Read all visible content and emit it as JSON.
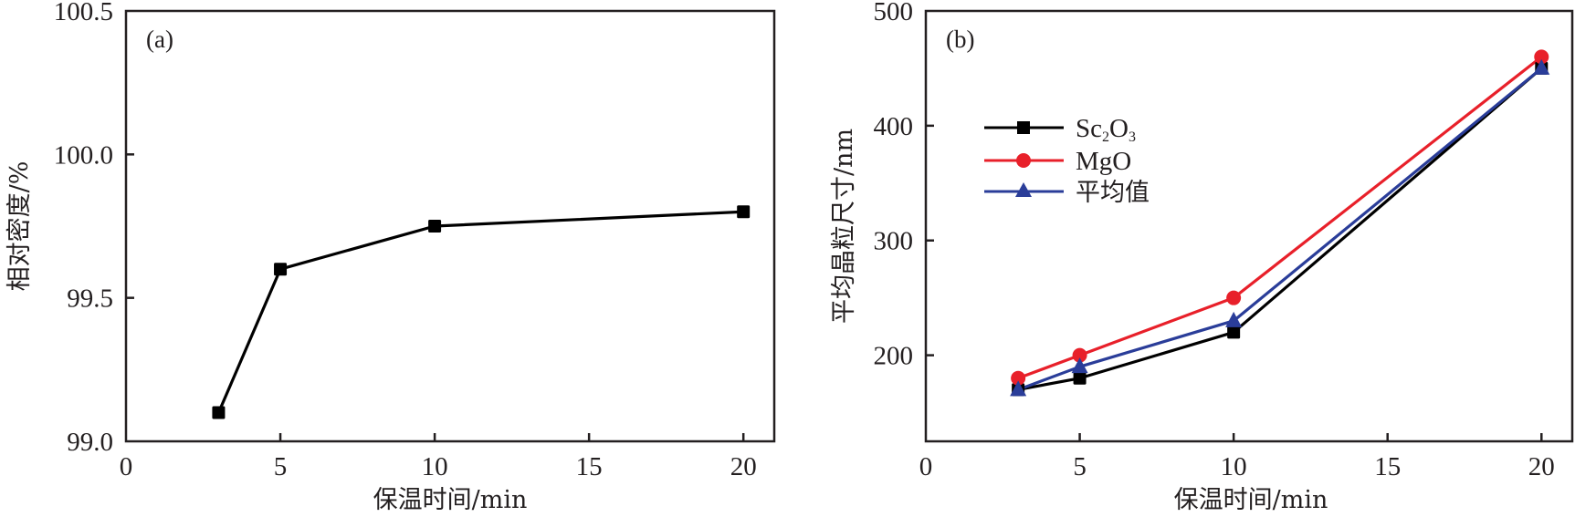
{
  "chart_data": [
    {
      "type": "line",
      "panel_label": "(a)",
      "title": "",
      "xlabel": "保温时间/min",
      "ylabel": "相对密度/%",
      "xlim": [
        0,
        21
      ],
      "ylim": [
        99.0,
        100.5
      ],
      "xticks": [
        0,
        5,
        10,
        15,
        20
      ],
      "xtick_labels": [
        "0",
        "5",
        "10",
        "15",
        "20"
      ],
      "yticks": [
        99.0,
        99.5,
        100.0,
        100.5
      ],
      "ytick_labels": [
        "99.0",
        "99.5",
        "100.0",
        "100.5"
      ],
      "grid": false,
      "series": [
        {
          "name": "相对密度",
          "color": "#000000",
          "marker": "square",
          "x": [
            3,
            5,
            10,
            20
          ],
          "values": [
            99.1,
            99.6,
            99.75,
            99.8
          ]
        }
      ]
    },
    {
      "type": "line",
      "panel_label": "(b)",
      "title": "",
      "xlabel": "保温时间/min",
      "ylabel": "平均晶粒尺寸/nm",
      "xlim": [
        0,
        21
      ],
      "ylim": [
        125,
        500
      ],
      "xticks": [
        0,
        5,
        10,
        15,
        20
      ],
      "xtick_labels": [
        "0",
        "5",
        "10",
        "15",
        "20"
      ],
      "yticks": [
        200,
        300,
        400,
        500
      ],
      "ytick_labels": [
        "200",
        "300",
        "400",
        "500"
      ],
      "grid": false,
      "legend_position": "upper-left",
      "series": [
        {
          "name": "Sc2O3",
          "label_main": "Sc",
          "label_sub1": "2",
          "label_mid": "O",
          "label_sub2": "3",
          "color": "#000000",
          "marker": "square",
          "x": [
            3,
            5,
            10,
            20
          ],
          "values": [
            170,
            180,
            220,
            450
          ]
        },
        {
          "name": "MgO",
          "color": "#e8202a",
          "marker": "circle",
          "x": [
            3,
            5,
            10,
            20
          ],
          "values": [
            180,
            200,
            250,
            460
          ]
        },
        {
          "name": "平均值",
          "color": "#2a3d99",
          "marker": "triangle",
          "x": [
            3,
            5,
            10,
            20
          ],
          "values": [
            170,
            190,
            230,
            450
          ]
        }
      ]
    }
  ]
}
